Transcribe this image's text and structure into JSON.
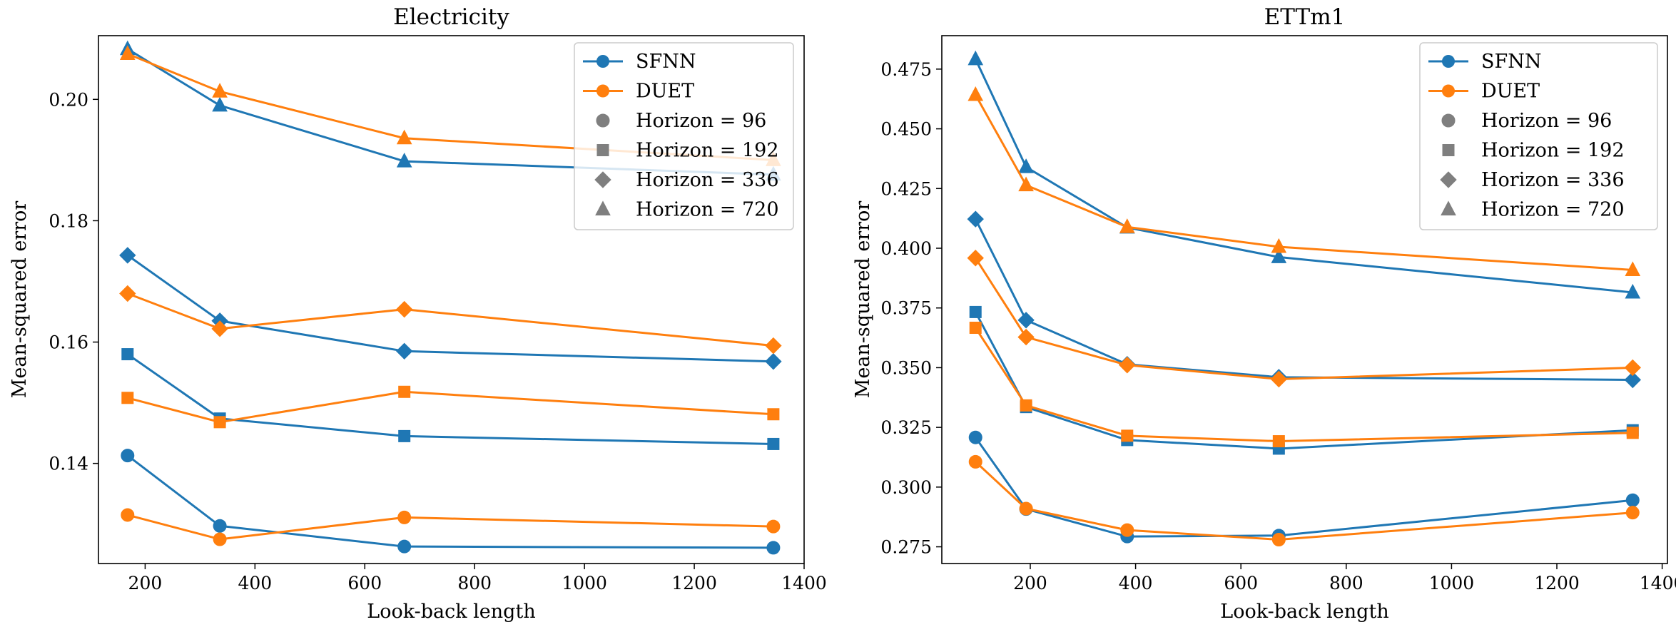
{
  "chart_data": [
    {
      "type": "line",
      "title": "Electricity",
      "xlabel": "Look-back length",
      "ylabel": "Mean-squared error",
      "xlim": [
        115,
        1400
      ],
      "ylim": [
        0.1235,
        0.2105
      ],
      "xticks": [
        200,
        400,
        600,
        800,
        1000,
        1200,
        1400
      ],
      "xtick_labels": [
        "200",
        "400",
        "600",
        "800",
        "1000",
        "1200",
        "1400"
      ],
      "yticks": [
        0.14,
        0.16,
        0.18,
        0.2
      ],
      "ytick_labels": [
        "0.14",
        "0.16",
        "0.18",
        "0.20"
      ],
      "x": [
        168,
        336,
        672,
        1344
      ],
      "series": [
        {
          "name": "SFNN",
          "horizon": "96",
          "marker": "circle",
          "values": [
            0.1413,
            0.1297,
            0.1263,
            0.1261
          ]
        },
        {
          "name": "DUET",
          "horizon": "96",
          "marker": "circle",
          "values": [
            0.1315,
            0.1275,
            0.1311,
            0.1296
          ]
        },
        {
          "name": "SFNN",
          "horizon": "192",
          "marker": "square",
          "values": [
            0.158,
            0.1474,
            0.1445,
            0.1432
          ]
        },
        {
          "name": "DUET",
          "horizon": "192",
          "marker": "square",
          "values": [
            0.1508,
            0.1468,
            0.1518,
            0.1481
          ]
        },
        {
          "name": "SFNN",
          "horizon": "336",
          "marker": "diamond",
          "values": [
            0.1743,
            0.1635,
            0.1585,
            0.1568
          ]
        },
        {
          "name": "DUET",
          "horizon": "336",
          "marker": "diamond",
          "values": [
            0.168,
            0.1622,
            0.1654,
            0.1594
          ]
        },
        {
          "name": "SFNN",
          "horizon": "720",
          "marker": "triangle",
          "values": [
            0.2083,
            0.199,
            0.1898,
            0.1876
          ]
        },
        {
          "name": "DUET",
          "horizon": "720",
          "marker": "triangle",
          "values": [
            0.2075,
            0.2013,
            0.1936,
            0.19
          ]
        }
      ],
      "legend": {
        "position": "top-right",
        "entries": [
          {
            "label": "SFNN",
            "kind": "line",
            "color": "#1f77b4"
          },
          {
            "label": "DUET",
            "kind": "line",
            "color": "#ff7f0e"
          },
          {
            "label": "Horizon = 96",
            "kind": "circle",
            "color": "#7f7f7f"
          },
          {
            "label": "Horizon = 192",
            "kind": "square",
            "color": "#7f7f7f"
          },
          {
            "label": "Horizon = 336",
            "kind": "diamond",
            "color": "#7f7f7f"
          },
          {
            "label": "Horizon = 720",
            "kind": "triangle",
            "color": "#7f7f7f"
          }
        ]
      },
      "colors": {
        "SFNN": "#1f77b4",
        "DUET": "#ff7f0e"
      }
    },
    {
      "type": "line",
      "title": "ETTm1",
      "xlabel": "Look-back length",
      "ylabel": "Mean-squared error",
      "xlim": [
        32,
        1410
      ],
      "ylim": [
        0.268,
        0.489
      ],
      "xticks": [
        200,
        400,
        600,
        800,
        1000,
        1200,
        1400
      ],
      "xtick_labels": [
        "200",
        "400",
        "600",
        "800",
        "1000",
        "1200",
        "1400"
      ],
      "yticks": [
        0.275,
        0.3,
        0.325,
        0.35,
        0.375,
        0.4,
        0.425,
        0.45,
        0.475
      ],
      "ytick_labels": [
        "0.275",
        "0.300",
        "0.325",
        "0.350",
        "0.375",
        "0.400",
        "0.425",
        "0.450",
        "0.475"
      ],
      "x": [
        96,
        192,
        384,
        672,
        1344
      ],
      "series": [
        {
          "name": "SFNN",
          "horizon": "96",
          "marker": "circle",
          "values": [
            0.3208,
            0.2908,
            0.2793,
            0.2797,
            0.2945
          ]
        },
        {
          "name": "DUET",
          "horizon": "96",
          "marker": "circle",
          "values": [
            0.3106,
            0.291,
            0.282,
            0.278,
            0.2893
          ]
        },
        {
          "name": "SFNN",
          "horizon": "192",
          "marker": "square",
          "values": [
            0.3733,
            0.3335,
            0.3197,
            0.3161,
            0.3238
          ]
        },
        {
          "name": "DUET",
          "horizon": "192",
          "marker": "square",
          "values": [
            0.3667,
            0.3342,
            0.3215,
            0.3192,
            0.3227
          ]
        },
        {
          "name": "SFNN",
          "horizon": "336",
          "marker": "diamond",
          "values": [
            0.4122,
            0.3699,
            0.3514,
            0.346,
            0.3449
          ]
        },
        {
          "name": "DUET",
          "horizon": "336",
          "marker": "diamond",
          "values": [
            0.3959,
            0.3628,
            0.3511,
            0.3452,
            0.35
          ]
        },
        {
          "name": "SFNN",
          "horizon": "720",
          "marker": "triangle",
          "values": [
            0.4792,
            0.434,
            0.4087,
            0.3963,
            0.3815
          ]
        },
        {
          "name": "DUET",
          "horizon": "720",
          "marker": "triangle",
          "values": [
            0.4642,
            0.4264,
            0.4089,
            0.4006,
            0.3909
          ]
        }
      ],
      "legend": {
        "position": "top-right",
        "entries": [
          {
            "label": "SFNN",
            "kind": "line",
            "color": "#1f77b4"
          },
          {
            "label": "DUET",
            "kind": "line",
            "color": "#ff7f0e"
          },
          {
            "label": "Horizon = 96",
            "kind": "circle",
            "color": "#7f7f7f"
          },
          {
            "label": "Horizon = 192",
            "kind": "square",
            "color": "#7f7f7f"
          },
          {
            "label": "Horizon = 336",
            "kind": "diamond",
            "color": "#7f7f7f"
          },
          {
            "label": "Horizon = 720",
            "kind": "triangle",
            "color": "#7f7f7f"
          }
        ]
      },
      "colors": {
        "SFNN": "#1f77b4",
        "DUET": "#ff7f0e"
      }
    }
  ]
}
